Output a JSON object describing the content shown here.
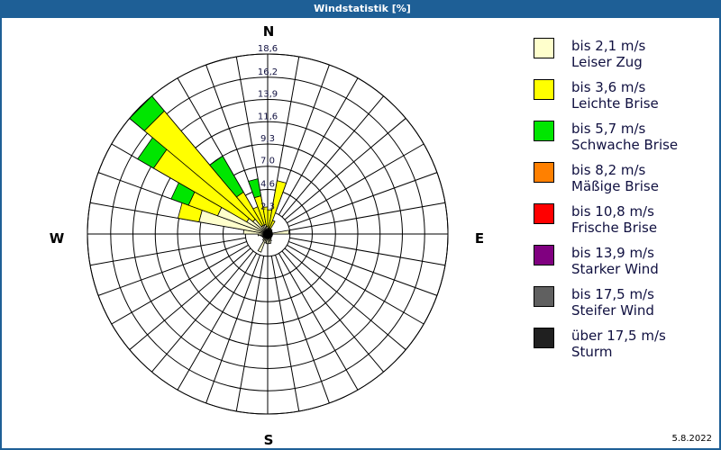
{
  "window": {
    "title": "Windstatistik [%]",
    "date": "5.8.2022"
  },
  "directions": {
    "n": "N",
    "e": "E",
    "s": "S",
    "w": "W"
  },
  "legend": [
    {
      "speed": "bis 2,1 m/s",
      "name": "Leiser Zug",
      "color": "#ffffcc"
    },
    {
      "speed": "bis 3,6 m/s",
      "name": "Leichte Brise",
      "color": "#ffff00"
    },
    {
      "speed": "bis 5,7 m/s",
      "name": "Schwache Brise",
      "color": "#00e600"
    },
    {
      "speed": "bis 8,2 m/s",
      "name": "Mäßige Brise",
      "color": "#ff8000"
    },
    {
      "speed": "bis 10,8 m/s",
      "name": "Frische Brise",
      "color": "#ff0000"
    },
    {
      "speed": "bis 13,9 m/s",
      "name": "Starker Wind",
      "color": "#800080"
    },
    {
      "speed": "bis 17,5 m/s",
      "name": "Steifer Wind",
      "color": "#606060"
    },
    {
      "speed": "über 17,5 m/s",
      "name": "Sturm",
      "color": "#202020"
    }
  ],
  "chart_data": {
    "type": "wind-rose",
    "title": "Windstatistik [%]",
    "unit": "%",
    "ring_labels": [
      "2,3",
      "4,6",
      "7,0",
      "9,3",
      "11,6",
      "13,9",
      "16,2",
      "18,6"
    ],
    "ring_values": [
      2.3,
      4.6,
      7.0,
      9.3,
      11.6,
      13.9,
      16.2,
      18.6
    ],
    "rmax": 18.6,
    "sector_width_deg": 10,
    "classes": [
      "Leiser Zug",
      "Leichte Brise",
      "Schwache Brise",
      "Mäßige Brise",
      "Frische Brise",
      "Starker Wind",
      "Steifer Wind",
      "Sturm"
    ],
    "sectors_cumulative_note": "values are cumulative % per class (cream, yellow, green) for sector starting at 'start' degrees",
    "sectors": [
      {
        "start": 0,
        "cum": [
          0.6,
          2.5
        ]
      },
      {
        "start": 10,
        "cum": [
          0.6,
          5.6
        ]
      },
      {
        "start": 20,
        "cum": [
          0.6,
          1.5
        ]
      },
      {
        "start": 30,
        "cum": [
          0.6
        ]
      },
      {
        "start": 40,
        "cum": [
          0.6
        ]
      },
      {
        "start": 50,
        "cum": [
          0.5
        ]
      },
      {
        "start": 60,
        "cum": [
          0.5
        ]
      },
      {
        "start": 70,
        "cum": [
          0.5
        ]
      },
      {
        "start": 80,
        "cum": [
          2.2
        ]
      },
      {
        "start": 90,
        "cum": [
          0.5
        ]
      },
      {
        "start": 100,
        "cum": [
          0.5
        ]
      },
      {
        "start": 110,
        "cum": [
          0.5
        ]
      },
      {
        "start": 120,
        "cum": [
          0.5
        ]
      },
      {
        "start": 130,
        "cum": [
          0.5
        ]
      },
      {
        "start": 140,
        "cum": [
          0.6
        ]
      },
      {
        "start": 150,
        "cum": [
          0.8
        ]
      },
      {
        "start": 160,
        "cum": [
          1.0
        ]
      },
      {
        "start": 170,
        "cum": [
          1.0
        ]
      },
      {
        "start": 180,
        "cum": [
          1.0
        ]
      },
      {
        "start": 190,
        "cum": [
          0.9
        ]
      },
      {
        "start": 200,
        "cum": [
          2.0
        ]
      },
      {
        "start": 210,
        "cum": [
          0.8
        ]
      },
      {
        "start": 220,
        "cum": [
          0.6
        ]
      },
      {
        "start": 230,
        "cum": [
          0.6
        ]
      },
      {
        "start": 240,
        "cum": [
          0.6
        ]
      },
      {
        "start": 250,
        "cum": [
          0.7
        ]
      },
      {
        "start": 260,
        "cum": [
          1.0
        ]
      },
      {
        "start": 270,
        "cum": [
          2.5
        ]
      },
      {
        "start": 280,
        "cum": [
          7.2,
          9.4
        ]
      },
      {
        "start": 290,
        "cum": [
          5.5,
          8.7,
          10.6
        ]
      },
      {
        "start": 300,
        "cum": [
          2.5,
          13.6,
          15.5
        ]
      },
      {
        "start": 310,
        "cum": [
          2.0,
          16.6,
          18.6
        ]
      },
      {
        "start": 320,
        "cum": [
          1.0,
          5.0,
          9.3
        ]
      },
      {
        "start": 330,
        "cum": [
          1.0,
          3.0
        ]
      },
      {
        "start": 340,
        "cum": [
          1.0,
          4.0,
          5.8
        ]
      },
      {
        "start": 350,
        "cum": [
          0.8,
          2.8
        ]
      }
    ]
  }
}
